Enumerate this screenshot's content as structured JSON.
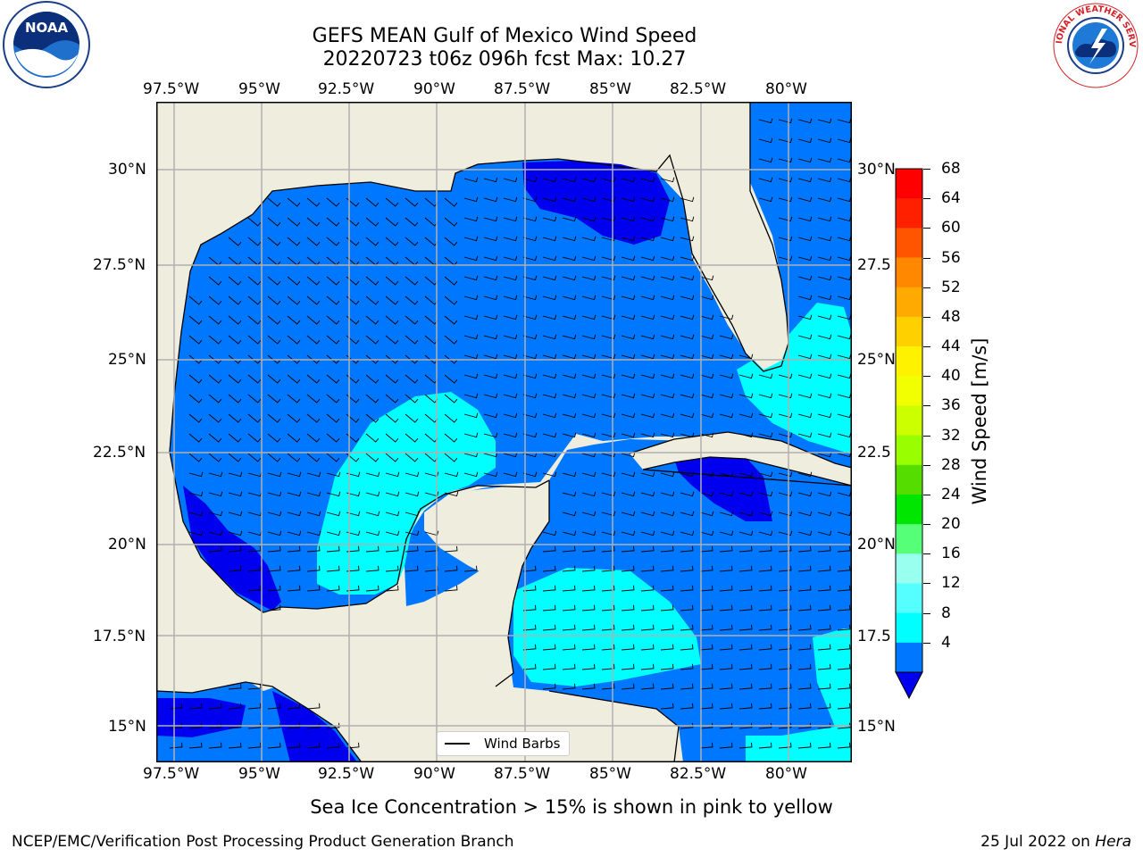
{
  "title": {
    "line1": "GEFS MEAN Gulf of Mexico Wind Speed",
    "line2": "20220723 t06z 096h fcst   Max: 10.27"
  },
  "map": {
    "lon_ticks_top": [
      "97.5°W",
      "95°W",
      "92.5°W",
      "90°W",
      "87.5°W",
      "85°W",
      "82.5°W",
      "80°W"
    ],
    "lon_ticks_bottom": [
      "97.5°W",
      "95°W",
      "92.5°W",
      "90°W",
      "87.5°W",
      "85°W",
      "82.5°W",
      "80°W"
    ],
    "lat_ticks_left": [
      "30°N",
      "27.5°N",
      "25°N",
      "22.5°N",
      "20°N",
      "17.5°N",
      "15°N"
    ],
    "lat_ticks_right": [
      "30°N",
      "27.5",
      "25°N",
      "22.5",
      "20°N",
      "17.5",
      "15°N"
    ],
    "colors": {
      "land": "#efedde",
      "wind_4_8": "#0077ff",
      "wind_lt_4": "#0000ee",
      "wind_8_12": "#00ffff"
    }
  },
  "legend": {
    "label": "Wind Barbs"
  },
  "colorbar": {
    "label": "Wind Speed [m/s]",
    "ticks": [
      "68",
      "64",
      "60",
      "56",
      "52",
      "48",
      "44",
      "40",
      "36",
      "32",
      "28",
      "24",
      "20",
      "16",
      "12",
      "8",
      "4"
    ],
    "colors": [
      "#ff0000",
      "#ff2000",
      "#ff5500",
      "#ff8800",
      "#ffaa00",
      "#ffd000",
      "#fff200",
      "#f2ff00",
      "#ccff00",
      "#99ff00",
      "#55dd00",
      "#00e600",
      "#55ff77",
      "#99ffee",
      "#55ffff",
      "#00ffff",
      "#0077ff"
    ],
    "under_color": "#0000ee"
  },
  "footer": {
    "note": "Sea Ice Concentration > 15% is shown in pink to yellow",
    "left": "NCEP/EMC/Verification Post Processing Product Generation Branch",
    "date": "25 Jul 2022 on",
    "machine": "Hera"
  },
  "logos": {
    "noaa": {
      "text": "NOAA"
    },
    "nws": {
      "text": "NATIONAL WEATHER SERVICE"
    }
  }
}
